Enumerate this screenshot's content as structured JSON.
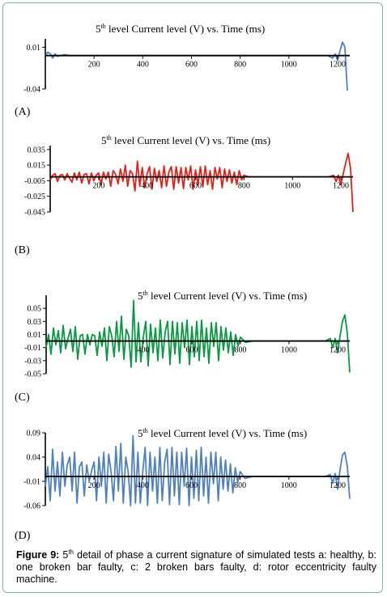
{
  "chart_data": [
    {
      "id": "A",
      "type": "line",
      "panel_label": "(A)",
      "title_prefix": "5",
      "title_sup": "th",
      "title_rest": " level Current level (V) vs. Time (ms)",
      "ylim": [
        -0.04,
        0.02
      ],
      "xlim": [
        0,
        1250
      ],
      "yticks": [
        0.01,
        -0.04
      ],
      "ytick_labels": [
        "0.01",
        "-0.04"
      ],
      "xticks": [
        200,
        400,
        600,
        800,
        1000,
        1200
      ],
      "xtick_labels": [
        "200",
        "400",
        "600",
        "800",
        "1000",
        "1200"
      ],
      "color": "#4f81bd",
      "series": [
        {
          "x": [
            0,
            10,
            20,
            30,
            40,
            50,
            60,
            80,
            100,
            150,
            200,
            300,
            400,
            500,
            600,
            700,
            800,
            900,
            1000,
            1100,
            1160,
            1180,
            1190,
            1200,
            1210,
            1220,
            1230,
            1240
          ],
          "values": [
            0,
            0.004,
            0.002,
            -0.003,
            0.002,
            -0.001,
            0,
            0.001,
            0,
            0,
            0,
            0,
            0,
            0,
            0,
            0,
            0,
            0,
            0,
            0,
            0,
            -0.003,
            0.002,
            -0.006,
            0.006,
            0.016,
            0.01,
            -0.042
          ]
        }
      ]
    },
    {
      "id": "B",
      "type": "line",
      "panel_label": "(B)",
      "title_prefix": "5",
      "title_sup": "th",
      "title_rest": " level Current level (V) vs. Time (ms)",
      "ylim": [
        -0.045,
        0.04
      ],
      "xlim": [
        0,
        1250
      ],
      "yticks": [
        0.035,
        0.015,
        -0.005,
        -0.025,
        -0.045
      ],
      "ytick_labels": [
        "0.035",
        "0.015",
        "-0.005",
        "-0.025",
        "-0.045"
      ],
      "xticks": [
        200,
        400,
        600,
        800,
        1000,
        1200
      ],
      "xtick_labels": [
        "200",
        "400",
        "600",
        "800",
        "1000",
        "1200"
      ],
      "color": "#e32119",
      "series": [
        {
          "x": [
            0,
            10,
            20,
            30,
            40,
            50,
            60,
            70,
            80,
            90,
            100,
            110,
            120,
            130,
            140,
            150,
            160,
            170,
            180,
            190,
            200,
            210,
            220,
            230,
            240,
            250,
            260,
            270,
            280,
            290,
            300,
            310,
            320,
            330,
            340,
            350,
            360,
            370,
            380,
            390,
            400,
            410,
            420,
            430,
            440,
            450,
            460,
            470,
            480,
            490,
            500,
            510,
            520,
            530,
            540,
            550,
            560,
            570,
            580,
            590,
            600,
            610,
            620,
            630,
            640,
            650,
            660,
            670,
            680,
            690,
            700,
            710,
            720,
            730,
            740,
            750,
            760,
            770,
            780,
            790,
            800,
            820,
            850,
            900,
            1000,
            1100,
            1150,
            1170,
            1180,
            1190,
            1200,
            1210,
            1220,
            1230,
            1240,
            1250
          ],
          "values": [
            -0.004,
            0.002,
            0.004,
            -0.006,
            0.002,
            0.003,
            -0.004,
            0.004,
            -0.002,
            -0.007,
            0.005,
            -0.004,
            0.006,
            -0.008,
            0.003,
            0.004,
            -0.009,
            0.005,
            -0.005,
            0.002,
            0.005,
            -0.01,
            0.006,
            -0.003,
            0.006,
            -0.012,
            0.008,
            0.003,
            -0.009,
            0.01,
            -0.006,
            0.015,
            -0.012,
            0.008,
            0.004,
            -0.018,
            0.02,
            -0.012,
            0.012,
            -0.014,
            0.004,
            0.013,
            -0.016,
            0.011,
            -0.006,
            0.008,
            -0.014,
            0.014,
            -0.012,
            0.006,
            0.013,
            -0.016,
            0.013,
            -0.008,
            0.012,
            -0.015,
            0.012,
            -0.004,
            0.014,
            -0.016,
            0.009,
            -0.01,
            0.013,
            -0.013,
            0.014,
            -0.01,
            0.008,
            -0.016,
            0.012,
            -0.003,
            0.012,
            -0.014,
            0.01,
            -0.006,
            0.009,
            -0.008,
            0.006,
            -0.01,
            0.008,
            -0.004,
            0.002,
            0,
            0,
            0,
            0,
            0,
            0,
            0.002,
            -0.006,
            0.002,
            -0.01,
            0.004,
            0.018,
            0.03,
            0.01,
            -0.045
          ]
        }
      ]
    },
    {
      "id": "C",
      "type": "line",
      "panel_label": "(C)",
      "title_prefix": "5",
      "title_sup": "th",
      "title_rest": " level Current level (V) vs. Time (ms)",
      "ylim": [
        -0.05,
        0.07
      ],
      "xlim": [
        0,
        1250
      ],
      "yticks": [
        0.05,
        0.03,
        0.01,
        -0.01,
        -0.03,
        -0.05
      ],
      "ytick_labels": [
        "0.05",
        "0.03",
        "0.01",
        "-0.01",
        "-0.03",
        "-0.05"
      ],
      "xticks": [
        400,
        600,
        800,
        1000,
        1200
      ],
      "xtick_labels": [
        "400",
        "600",
        "800",
        "1000",
        "1200"
      ],
      "color": "#0b9a43",
      "series": [
        {
          "x": [
            0,
            10,
            20,
            30,
            40,
            50,
            60,
            70,
            80,
            90,
            100,
            110,
            120,
            130,
            140,
            150,
            160,
            170,
            180,
            190,
            200,
            210,
            220,
            230,
            240,
            250,
            260,
            270,
            280,
            290,
            300,
            310,
            320,
            330,
            340,
            350,
            360,
            370,
            380,
            390,
            400,
            410,
            420,
            430,
            440,
            450,
            460,
            470,
            480,
            490,
            500,
            510,
            520,
            530,
            540,
            550,
            560,
            570,
            580,
            590,
            600,
            610,
            620,
            630,
            640,
            650,
            660,
            670,
            680,
            690,
            700,
            710,
            720,
            730,
            740,
            750,
            760,
            770,
            780,
            790,
            800,
            820,
            850,
            900,
            1000,
            1100,
            1150,
            1170,
            1180,
            1190,
            1200,
            1210,
            1220,
            1230,
            1240,
            1250
          ],
          "values": [
            -0.01,
            0.01,
            -0.02,
            0.02,
            -0.006,
            0.016,
            -0.018,
            0.024,
            -0.012,
            0.004,
            0.018,
            -0.016,
            0.022,
            -0.028,
            0.008,
            0.01,
            -0.02,
            0.01,
            -0.006,
            0.01,
            0.008,
            -0.022,
            0.014,
            -0.008,
            0.02,
            -0.03,
            0.022,
            0.008,
            -0.024,
            0.03,
            -0.016,
            0.038,
            -0.028,
            0.018,
            0.008,
            -0.04,
            0.062,
            -0.032,
            0.028,
            -0.032,
            0.006,
            0.03,
            -0.038,
            0.026,
            -0.018,
            0.02,
            -0.03,
            0.032,
            -0.026,
            0.014,
            0.03,
            -0.036,
            0.03,
            -0.02,
            0.028,
            -0.034,
            0.028,
            -0.01,
            0.032,
            -0.036,
            0.022,
            -0.024,
            0.03,
            -0.03,
            0.032,
            -0.024,
            0.02,
            -0.034,
            0.028,
            -0.008,
            0.028,
            -0.03,
            0.022,
            -0.014,
            0.02,
            -0.018,
            0.014,
            -0.022,
            0.01,
            -0.008,
            0.006,
            -0.002,
            0,
            0,
            0,
            0,
            0,
            0.004,
            -0.01,
            0.004,
            -0.018,
            0.008,
            0.03,
            0.04,
            0.012,
            -0.048
          ]
        }
      ]
    },
    {
      "id": "D",
      "type": "line",
      "panel_label": "(D)",
      "title_prefix": "5",
      "title_sup": "th",
      "title_rest": " level Current level (V) vs. Time (ms)",
      "ylim": [
        -0.06,
        0.09
      ],
      "xlim": [
        0,
        1250
      ],
      "yticks": [
        0.09,
        0.04,
        -0.01,
        -0.06
      ],
      "ytick_labels": [
        "0.09",
        "0.04",
        "-0.01",
        "-0.06"
      ],
      "xticks": [
        200,
        400,
        600,
        800,
        1000,
        1200
      ],
      "xtick_labels": [
        "200",
        "400",
        "600",
        "800",
        "1000",
        "1200"
      ],
      "color": "#4f81bd",
      "series": [
        {
          "x": [
            0,
            10,
            20,
            30,
            40,
            50,
            60,
            70,
            80,
            90,
            100,
            110,
            120,
            130,
            140,
            150,
            160,
            170,
            180,
            190,
            200,
            210,
            220,
            230,
            240,
            250,
            260,
            270,
            280,
            290,
            300,
            310,
            320,
            330,
            340,
            350,
            360,
            370,
            380,
            390,
            400,
            410,
            420,
            430,
            440,
            450,
            460,
            470,
            480,
            490,
            500,
            510,
            520,
            530,
            540,
            550,
            560,
            570,
            580,
            590,
            600,
            610,
            620,
            630,
            640,
            650,
            660,
            670,
            680,
            690,
            700,
            710,
            720,
            730,
            740,
            750,
            760,
            770,
            780,
            790,
            800,
            820,
            850,
            900,
            1000,
            1100,
            1150,
            1170,
            1180,
            1190,
            1200,
            1210,
            1220,
            1230,
            1240,
            1250
          ],
          "values": [
            -0.02,
            0.02,
            -0.05,
            0.056,
            -0.03,
            0.03,
            -0.04,
            0.05,
            -0.02,
            0.024,
            0.04,
            -0.03,
            0.05,
            -0.055,
            0.02,
            0.03,
            -0.04,
            0.024,
            -0.01,
            0.012,
            0.03,
            -0.05,
            0.04,
            -0.02,
            0.05,
            -0.055,
            0.046,
            0.01,
            -0.05,
            0.062,
            -0.03,
            0.068,
            -0.055,
            0.04,
            0.01,
            -0.06,
            0.084,
            -0.055,
            0.05,
            -0.055,
            0.01,
            0.06,
            -0.06,
            0.05,
            -0.03,
            0.04,
            -0.055,
            0.06,
            -0.05,
            0.03,
            0.056,
            -0.058,
            0.06,
            -0.04,
            0.05,
            -0.058,
            0.05,
            -0.02,
            0.058,
            -0.06,
            0.04,
            -0.045,
            0.054,
            -0.05,
            0.06,
            -0.04,
            0.04,
            -0.055,
            0.05,
            -0.015,
            0.05,
            -0.05,
            0.04,
            -0.026,
            0.034,
            -0.03,
            0.026,
            -0.034,
            0.018,
            -0.012,
            0.01,
            -0.004,
            0,
            0,
            0,
            0,
            0,
            0.004,
            -0.014,
            0.006,
            -0.026,
            0.014,
            0.044,
            0.05,
            0.02,
            -0.046
          ]
        }
      ]
    }
  ],
  "caption": {
    "label": "Figure 9:",
    "prefix": " 5",
    "sup": "th",
    "text": " detail of phase a current signature of simulated tests a: healthy, b: one broken bar faulty, c: 2 broken bars faulty, d: rotor eccentricity faulty machine."
  }
}
